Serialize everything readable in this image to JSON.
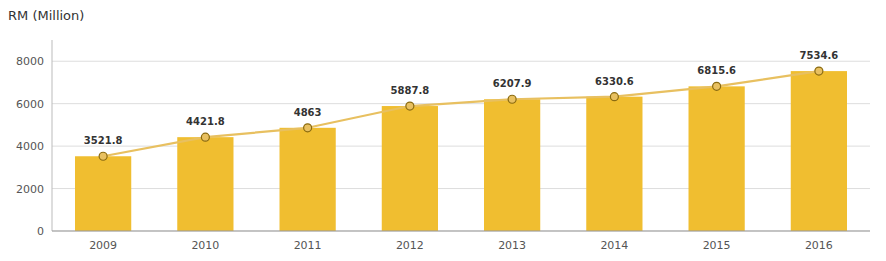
{
  "chart_data": {
    "type": "bar",
    "title": "RM (Million)",
    "categories": [
      "2009",
      "2010",
      "2011",
      "2012",
      "2013",
      "2014",
      "2015",
      "2016"
    ],
    "series": [
      {
        "type": "bar",
        "color": "#f0be30",
        "values": [
          3521.8,
          4421.8,
          4863,
          5887.8,
          6207.9,
          6330.6,
          6815.6,
          7534.6
        ]
      },
      {
        "type": "line",
        "color": "#e8c060",
        "marker": "circle",
        "values": [
          3521.8,
          4421.8,
          4863,
          5887.8,
          6207.9,
          6330.6,
          6815.6,
          7534.6
        ]
      }
    ],
    "ylim": [
      0,
      9000
    ],
    "yticks": [
      0,
      2000,
      4000,
      6000,
      8000
    ],
    "grid": true,
    "data_labels": true
  }
}
